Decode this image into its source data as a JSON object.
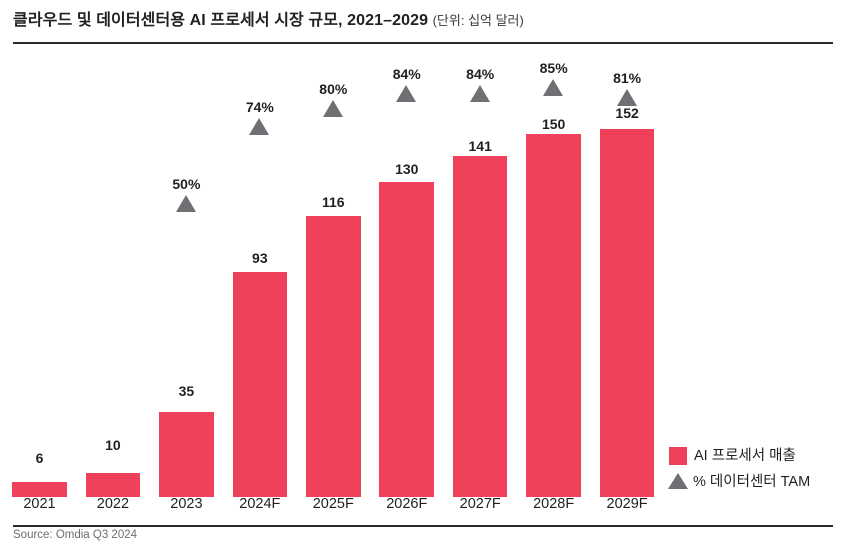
{
  "title": {
    "text": "클라우드 및 데이터센터용 AI 프로세서 시장 규모, 2021–2029",
    "unit": "(단위: 십억 달러)"
  },
  "source": "Source: Omdia Q3 2024",
  "legend": {
    "bar_label": "AI 프로세서 매출",
    "tam_label": "% 데이터센터 TAM"
  },
  "colors": {
    "bar": "#EF415A",
    "triangle": "#6F7073",
    "text": "#231F20",
    "source_text": "#6D6E71"
  },
  "chart_data": {
    "type": "bar",
    "title": "클라우드 및 데이터센터용 AI 프로세서 시장 규모, 2021–2029",
    "unit_label": "(단위: 십억 달러)",
    "categories": [
      "2021",
      "2022",
      "2023",
      "2024F",
      "2025F",
      "2026F",
      "2027F",
      "2028F",
      "2029F"
    ],
    "series": [
      {
        "name": "AI 프로세서 매출",
        "type": "bar",
        "values": [
          6,
          10,
          35,
          93,
          116,
          130,
          141,
          150,
          152
        ]
      },
      {
        "name": "% 데이터센터 TAM",
        "type": "triangle",
        "unit": "%",
        "values": [
          null,
          null,
          50,
          74,
          80,
          84,
          84,
          85,
          81
        ]
      }
    ],
    "ylabel": "",
    "xlabel": "",
    "grid": false,
    "legend_position": "bottom-right"
  }
}
